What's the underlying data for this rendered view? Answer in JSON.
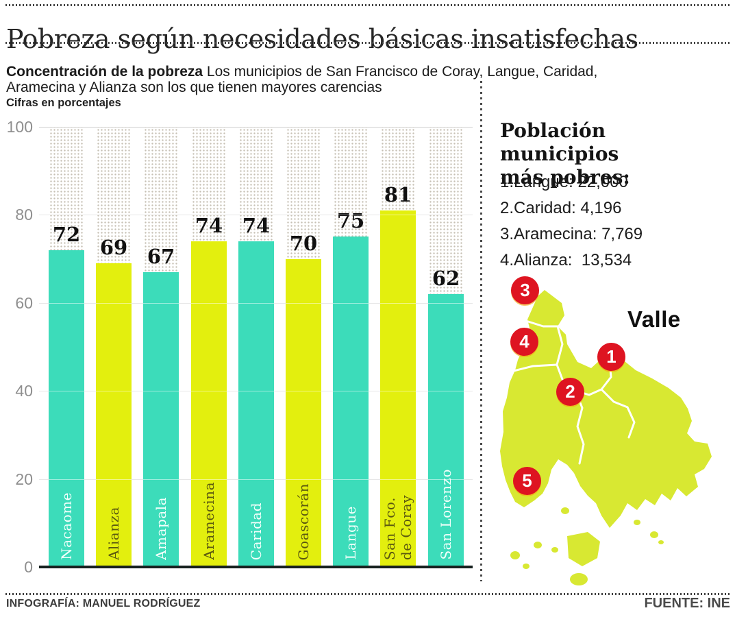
{
  "header": {
    "title": "Pobreza según  necesidades básicas insatisfechas",
    "subtitle_bold": "Concentración de la pobreza",
    "subtitle_rest_line1": " Los municipios de San Francisco de Coray, Langue, Caridad,",
    "subtitle_line2": "Aramecina y Alianza son los que tienen mayores carencias",
    "chart_note": "Cifras en porcentajes"
  },
  "chart_data": {
    "type": "bar",
    "title": "Pobreza según necesidades básicas insatisfechas (%)",
    "unit": "percent",
    "categories": [
      "Nacaome",
      "Alianza",
      "Amapala",
      "Aramecina",
      "Caridad",
      "Goascorán",
      "Langue",
      "San Fco. de Coray",
      "San Lorenzo"
    ],
    "category_lines": [
      [
        "Nacaome"
      ],
      [
        "Alianza"
      ],
      [
        "Amapala"
      ],
      [
        "Aramecina"
      ],
      [
        "Caridad"
      ],
      [
        "Goascorán"
      ],
      [
        "Langue"
      ],
      [
        "San Fco.",
        "de Coray"
      ],
      [
        "San Lorenzo"
      ]
    ],
    "values": [
      72,
      69,
      67,
      74,
      74,
      70,
      75,
      81,
      62
    ],
    "bar_color_keys": [
      "teal",
      "yellow",
      "teal",
      "yellow",
      "teal",
      "yellow",
      "teal",
      "yellow",
      "teal"
    ],
    "ylim": [
      0,
      100
    ],
    "yticks": [
      0,
      20,
      40,
      60,
      80,
      100
    ],
    "grid": true,
    "legend": "none"
  },
  "colors": {
    "teal": "#3cdcba",
    "yellow": "#e3ef0e",
    "teal_label_text": "#f2fffb",
    "yellow_label_text": "#5c5a10",
    "map_fill": "#d8e832",
    "marker_red": "#de1421"
  },
  "side_panel": {
    "heading_line1": "Población municipios",
    "heading_line2": "más pobres:",
    "items": [
      "1.Langue: 22,000",
      "2.Caridad: 4,196",
      "3.Aramecina: 7,769",
      "4.Alianza:  13,534"
    ]
  },
  "map": {
    "region_label": "Valle",
    "markers": [
      {
        "label": "1"
      },
      {
        "label": "2"
      },
      {
        "label": "3"
      },
      {
        "label": "4"
      },
      {
        "label": "5"
      }
    ]
  },
  "footer": {
    "left": "INFOGRAFÍA: MANUEL RODRÍGUEZ",
    "right": "FUENTE: INE"
  }
}
